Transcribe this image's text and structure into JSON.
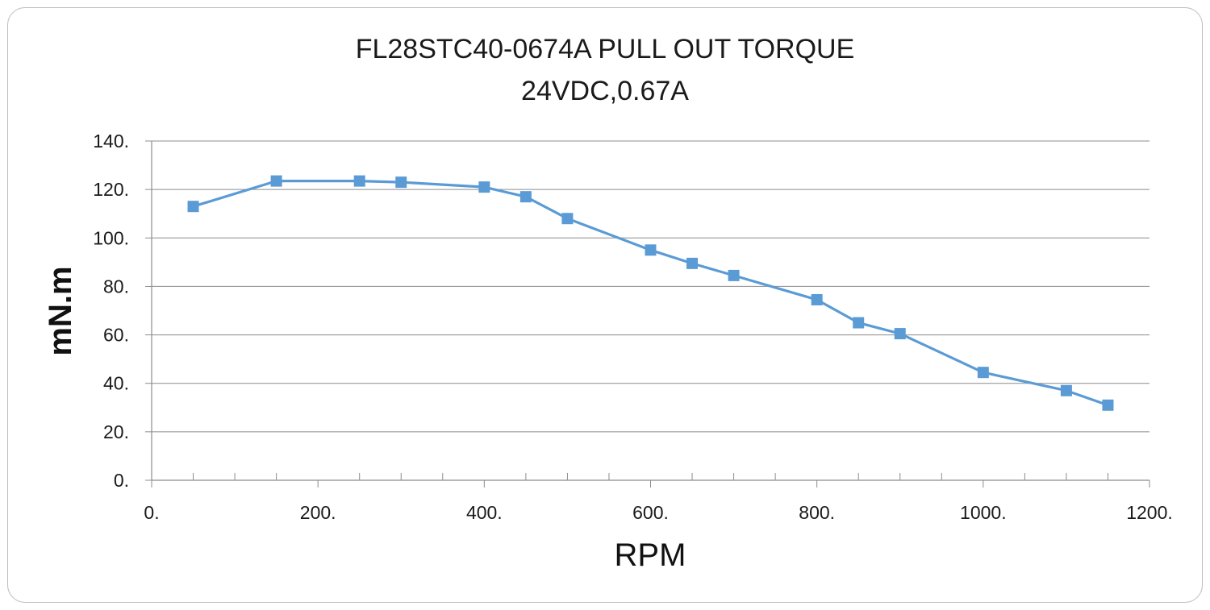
{
  "chart_data": {
    "type": "line",
    "title": "FL28STC40-0674A PULL OUT TORQUE",
    "subtitle": "24VDC,0.67A",
    "xlabel": "RPM",
    "ylabel": "mN.m",
    "xlim": [
      0,
      1200
    ],
    "ylim": [
      0,
      140
    ],
    "x_ticks": [
      0,
      200,
      400,
      600,
      800,
      1000,
      1200
    ],
    "x_tick_labels": [
      "0.",
      "200.",
      "400.",
      "600.",
      "800.",
      "1000.",
      "1200."
    ],
    "y_ticks": [
      0,
      20,
      40,
      60,
      80,
      100,
      120,
      140
    ],
    "y_tick_labels": [
      "0.",
      "20.",
      "40.",
      "60.",
      "80.",
      "100.",
      "120.",
      "140."
    ],
    "grid": "horizontal",
    "series": [
      {
        "color": "#5b9bd5",
        "marker": "square",
        "x": [
          50,
          150,
          250,
          300,
          400,
          450,
          500,
          600,
          650,
          700,
          800,
          850,
          900,
          1000,
          1100,
          1150
        ],
        "y": [
          113,
          123.5,
          123.5,
          123,
          121,
          117,
          108,
          95,
          89.5,
          84.5,
          74.5,
          65,
          60.5,
          44.5,
          37,
          31
        ]
      }
    ]
  }
}
